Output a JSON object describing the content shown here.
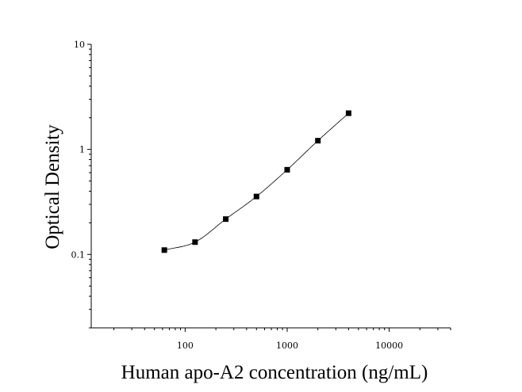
{
  "chart_data": {
    "type": "scatter",
    "title": "",
    "xlabel": "Human apo-A2 concentration (ng/mL)",
    "ylabel": "Optical Density",
    "x_scale": "log",
    "y_scale": "log",
    "xlim": [
      12,
      40000
    ],
    "ylim": [
      0.02,
      10
    ],
    "x_ticks": [
      100,
      1000,
      10000
    ],
    "x_tick_labels": [
      "100",
      "1000",
      "10000"
    ],
    "y_ticks": [
      0.1,
      1,
      10
    ],
    "y_tick_labels": [
      "0.1",
      "1",
      "10"
    ],
    "grid": false,
    "legend": "none",
    "marker": "square",
    "marker_color": "#000000",
    "curve_color": "#000000",
    "series": [
      {
        "x": [
          62.5,
          125,
          250,
          500,
          1000,
          2000,
          4000
        ],
        "y": [
          0.11,
          0.131,
          0.217,
          0.356,
          0.64,
          1.21,
          2.21
        ]
      }
    ]
  }
}
